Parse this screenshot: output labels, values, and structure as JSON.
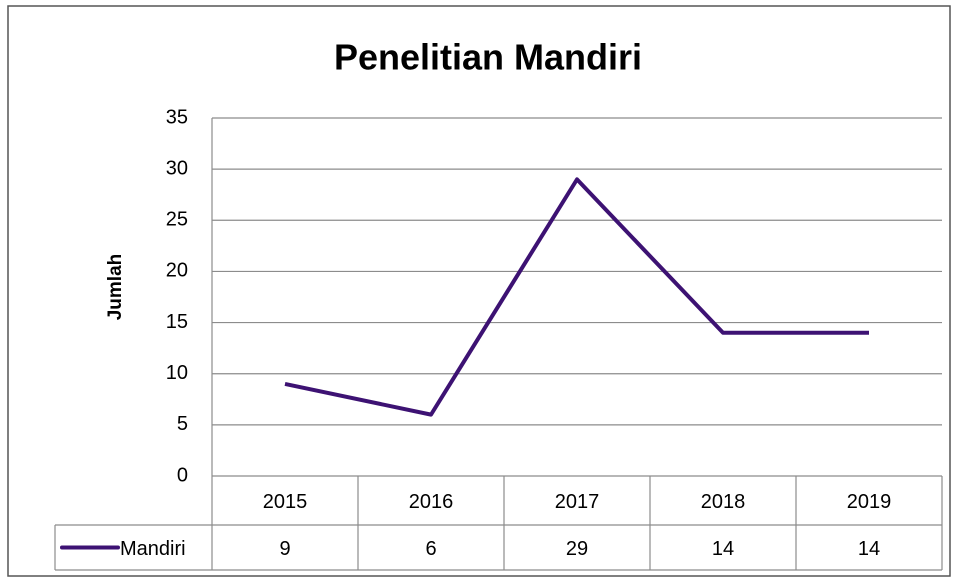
{
  "chart_data": {
    "type": "line",
    "title": "Penelitian Mandiri",
    "ylabel": "Jumlah",
    "categories": [
      "2015",
      "2016",
      "2017",
      "2018",
      "2019"
    ],
    "series": [
      {
        "name": "Mandiri",
        "color": "#3d1273",
        "values": [
          9,
          6,
          29,
          14,
          14
        ]
      }
    ],
    "ylim": [
      0,
      35
    ],
    "yticks": [
      0,
      5,
      10,
      15,
      20,
      25,
      30,
      35
    ],
    "grid": true,
    "data_table": true
  }
}
